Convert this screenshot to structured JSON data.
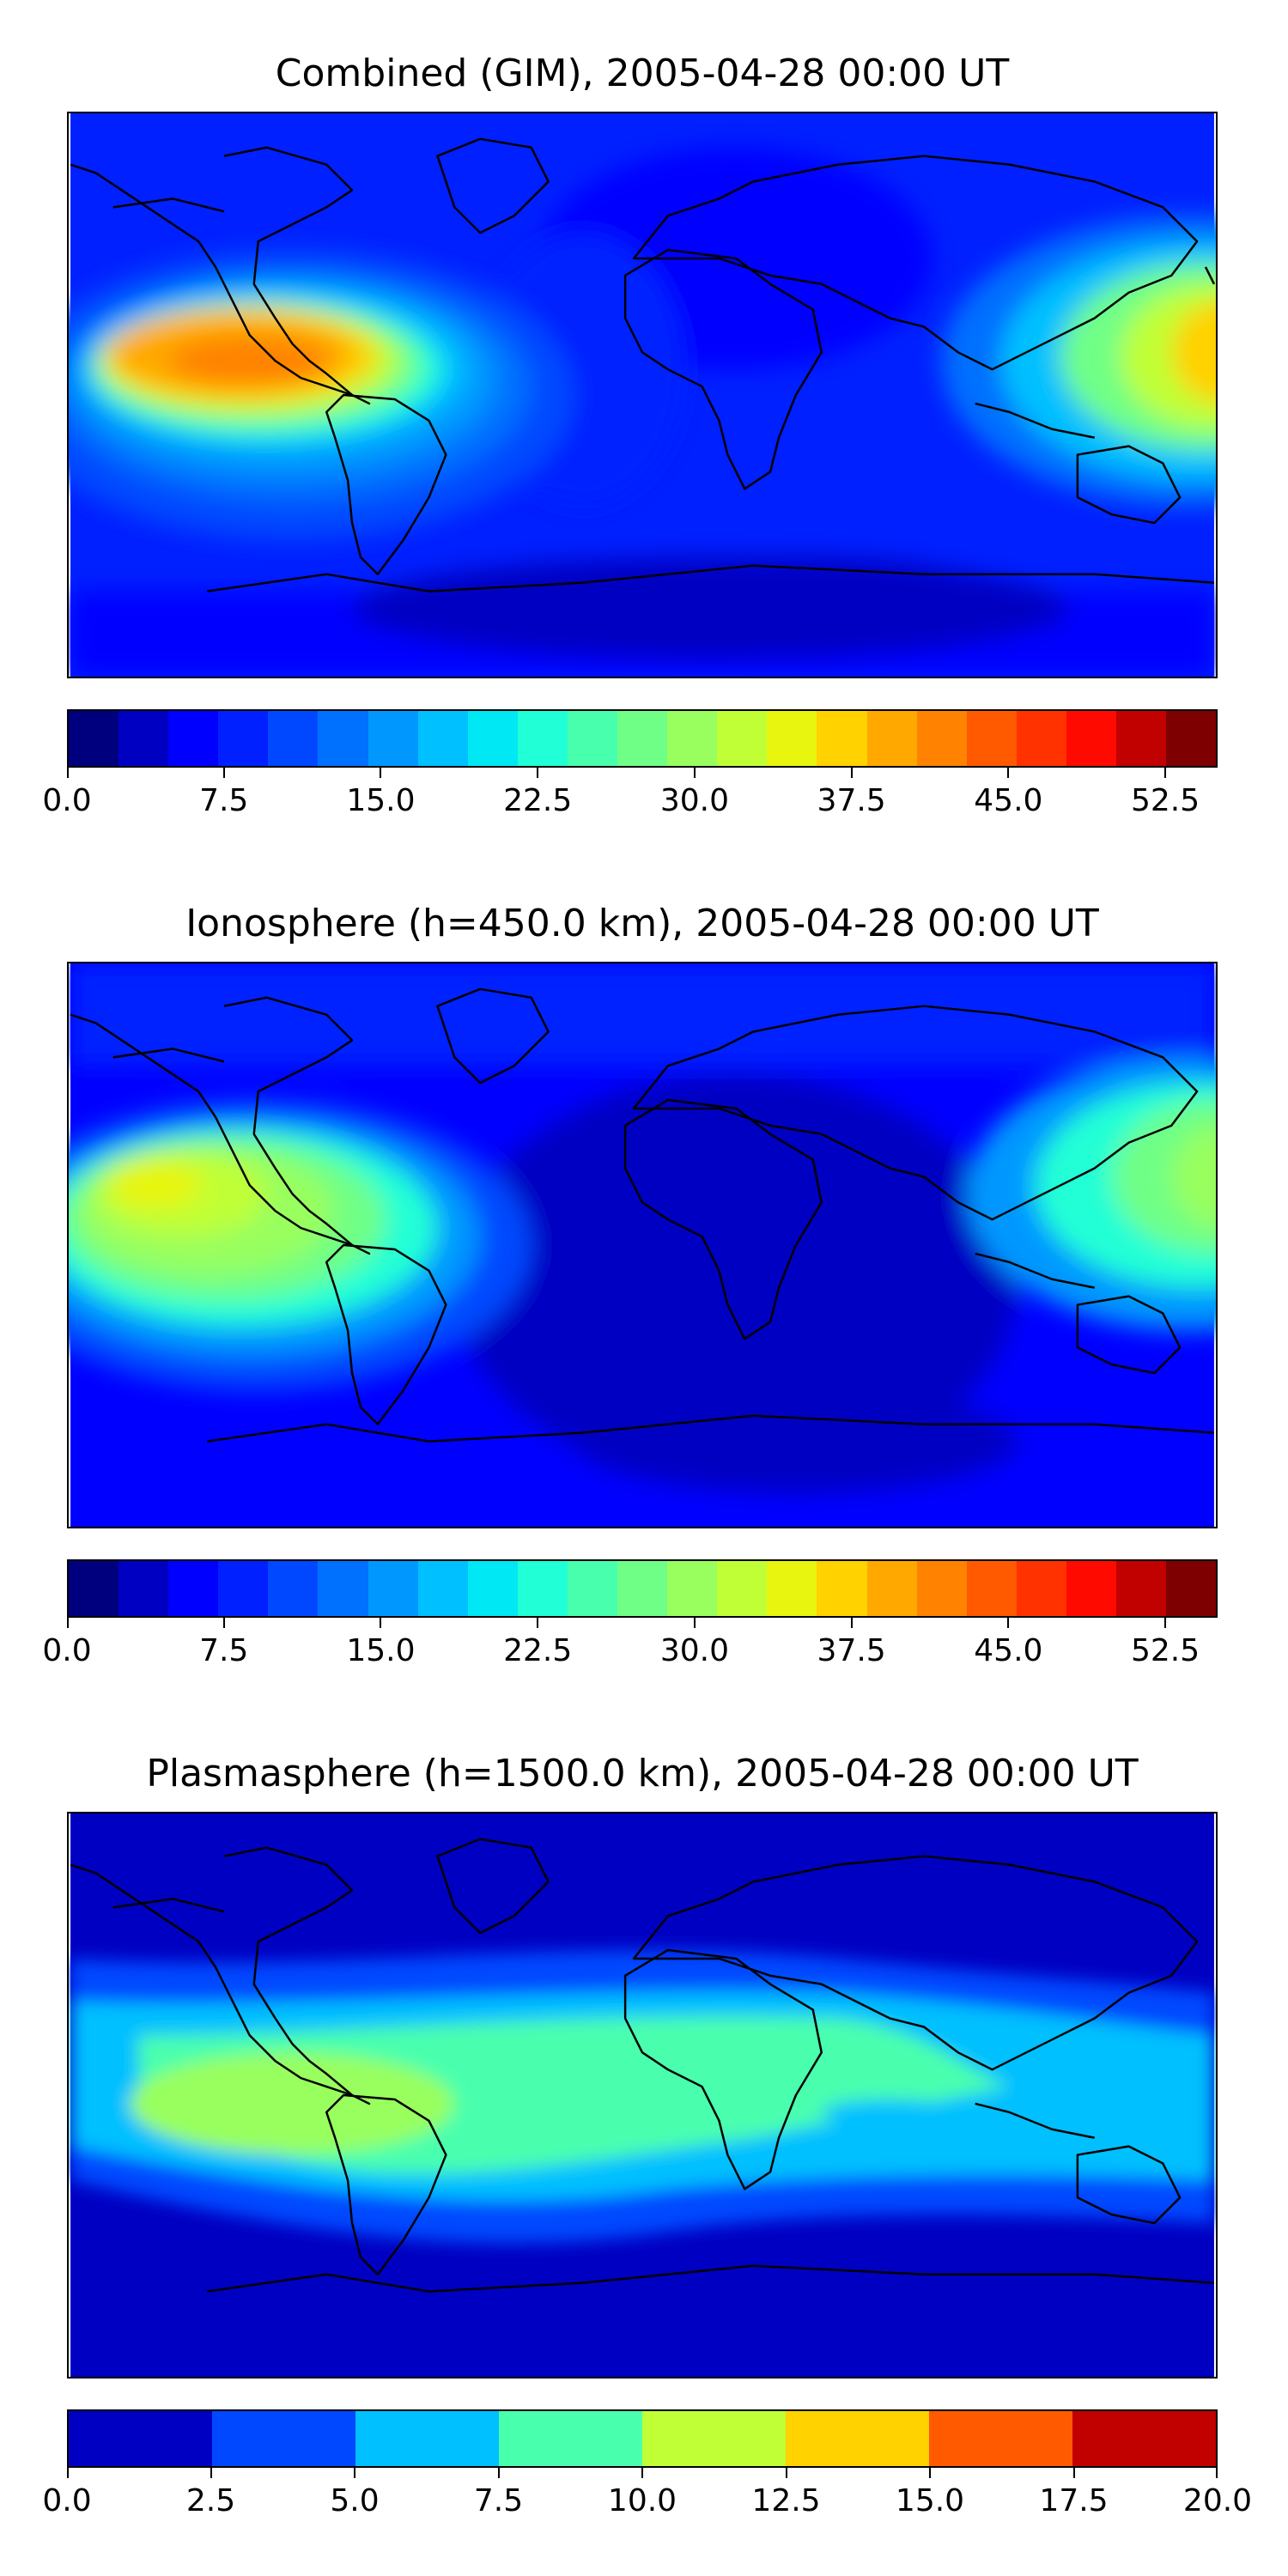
{
  "panels": [
    {
      "title": "Combined (GIM), 2005-04-28 00:00 UT",
      "colorbar": {
        "range": [
          0.0,
          55.0
        ],
        "tick_labels": [
          "0.0",
          "7.5",
          "15.0",
          "22.5",
          "30.0",
          "37.5",
          "45.0",
          "52.5"
        ],
        "tick_values": [
          0.0,
          7.5,
          15.0,
          22.5,
          30.0,
          37.5,
          45.0,
          52.5
        ],
        "colors": [
          "#00007f",
          "#0000c2",
          "#0000ff",
          "#0020ff",
          "#0048ff",
          "#0070ff",
          "#0098ff",
          "#00c0ff",
          "#00e8f4",
          "#20ffd6",
          "#48ffae",
          "#70ff86",
          "#98ff5e",
          "#c0ff36",
          "#e8f50e",
          "#ffd200",
          "#ffa900",
          "#ff8200",
          "#ff5a00",
          "#ff3200",
          "#ff0a00",
          "#c10000",
          "#7f0000"
        ]
      }
    },
    {
      "title": "Ionosphere  (h=450.0 km), 2005-04-28 00:00 UT",
      "colorbar": {
        "range": [
          0.0,
          55.0
        ],
        "tick_labels": [
          "0.0",
          "7.5",
          "15.0",
          "22.5",
          "30.0",
          "37.5",
          "45.0",
          "52.5"
        ],
        "tick_values": [
          0.0,
          7.5,
          15.0,
          22.5,
          30.0,
          37.5,
          45.0,
          52.5
        ],
        "colors": [
          "#00007f",
          "#0000c2",
          "#0000ff",
          "#0020ff",
          "#0048ff",
          "#0070ff",
          "#0098ff",
          "#00c0ff",
          "#00e8f4",
          "#20ffd6",
          "#48ffae",
          "#70ff86",
          "#98ff5e",
          "#c0ff36",
          "#e8f50e",
          "#ffd200",
          "#ffa900",
          "#ff8200",
          "#ff5a00",
          "#ff3200",
          "#ff0a00",
          "#c10000",
          "#7f0000"
        ]
      }
    },
    {
      "title": "Plasmasphere (h=1500.0 km), 2005-04-28 00:00 UT",
      "colorbar": {
        "range": [
          0.0,
          20.0
        ],
        "tick_labels": [
          "0.0",
          "2.5",
          "5.0",
          "7.5",
          "10.0",
          "12.5",
          "15.0",
          "17.5",
          "20.0"
        ],
        "tick_values": [
          0.0,
          2.5,
          5.0,
          7.5,
          10.0,
          12.5,
          15.0,
          17.5,
          20.0
        ],
        "colors": [
          "#0000c2",
          "#0048ff",
          "#00c0ff",
          "#48ffae",
          "#c0ff36",
          "#ffd200",
          "#ff5a00",
          "#c10000"
        ]
      }
    }
  ]
}
